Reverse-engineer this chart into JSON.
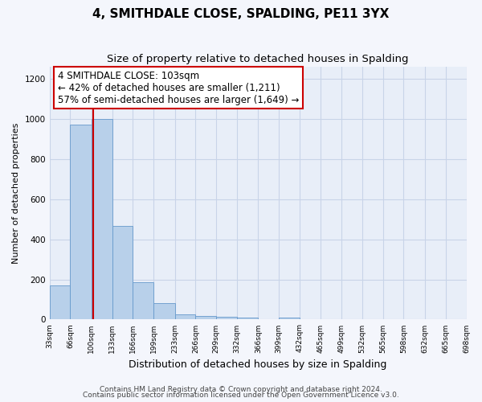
{
  "title": "4, SMITHDALE CLOSE, SPALDING, PE11 3YX",
  "subtitle": "Size of property relative to detached houses in Spalding",
  "xlabel": "Distribution of detached houses by size in Spalding",
  "ylabel": "Number of detached properties",
  "bar_edges": [
    33,
    66,
    100,
    133,
    166,
    199,
    233,
    266,
    299,
    332,
    366,
    399,
    432,
    465,
    499,
    532,
    565,
    598,
    632,
    665,
    698
  ],
  "bar_heights": [
    170,
    970,
    1000,
    465,
    185,
    80,
    25,
    18,
    14,
    10,
    0,
    8,
    0,
    0,
    0,
    0,
    0,
    0,
    0,
    0
  ],
  "bar_color": "#b8d0ea",
  "bar_edgecolor": "#6699cc",
  "property_line_x": 103,
  "property_line_color": "#cc0000",
  "annotation_title": "4 SMITHDALE CLOSE: 103sqm",
  "annotation_line1": "← 42% of detached houses are smaller (1,211)",
  "annotation_line2": "57% of semi-detached houses are larger (1,649) →",
  "annotation_box_facecolor": "#ffffff",
  "annotation_box_edgecolor": "#cc0000",
  "ylim": [
    0,
    1260
  ],
  "yticks": [
    0,
    200,
    400,
    600,
    800,
    1000,
    1200
  ],
  "tick_labels": [
    "33sqm",
    "66sqm",
    "100sqm",
    "133sqm",
    "166sqm",
    "199sqm",
    "233sqm",
    "266sqm",
    "299sqm",
    "332sqm",
    "366sqm",
    "399sqm",
    "432sqm",
    "465sqm",
    "499sqm",
    "532sqm",
    "565sqm",
    "598sqm",
    "632sqm",
    "665sqm",
    "698sqm"
  ],
  "grid_color": "#c8d4e8",
  "bg_color": "#e8eef8",
  "fig_bg_color": "#f4f6fc",
  "footer1": "Contains HM Land Registry data © Crown copyright and database right 2024.",
  "footer2": "Contains public sector information licensed under the Open Government Licence v3.0.",
  "title_fontsize": 11,
  "subtitle_fontsize": 9.5,
  "annotation_fontsize": 8.5,
  "ylabel_fontsize": 8,
  "xlabel_fontsize": 9,
  "footer_fontsize": 6.5,
  "tick_fontsize": 6.5
}
